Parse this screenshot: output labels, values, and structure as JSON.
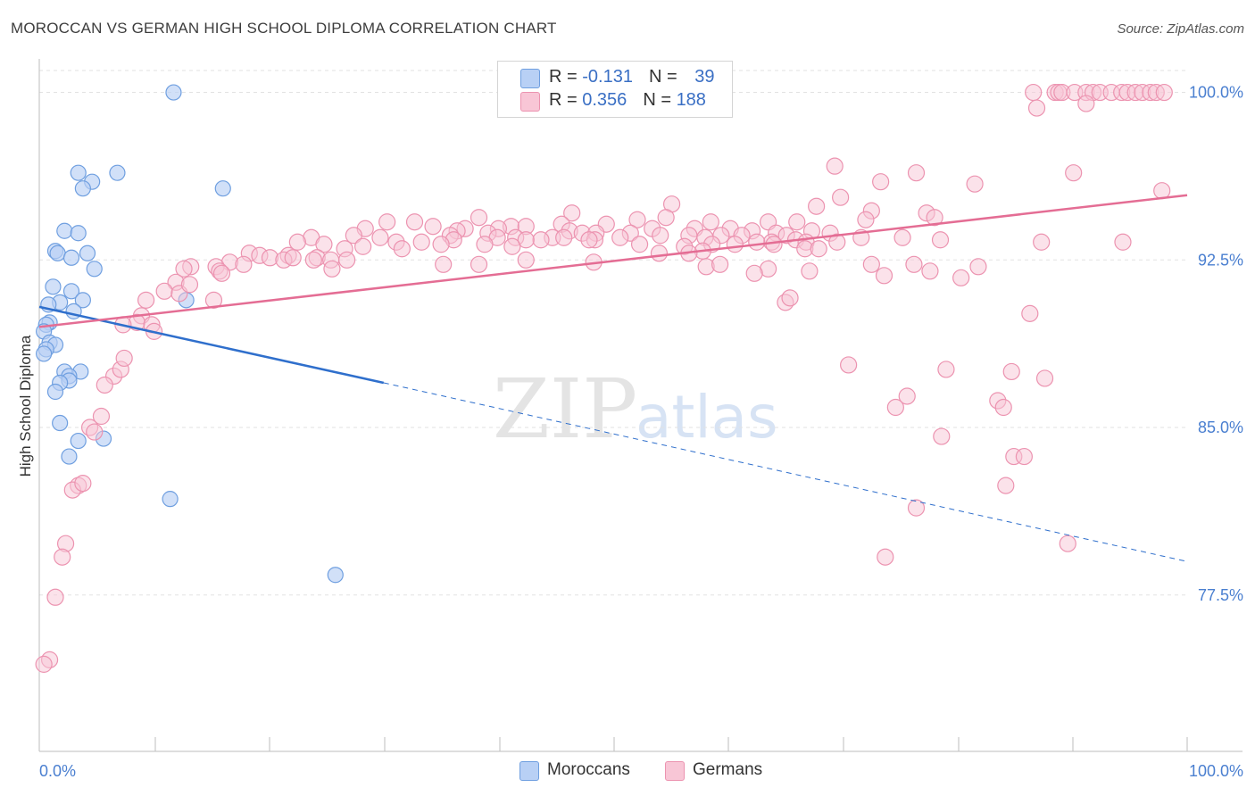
{
  "header": {
    "title": "MOROCCAN VS GERMAN HIGH SCHOOL DIPLOMA CORRELATION CHART",
    "source": "Source: ZipAtlas.com"
  },
  "legend": {
    "rows": [
      {
        "r_label": "R = ",
        "r_value": "-0.131",
        "n_label": "N = ",
        "n_value": "39"
      },
      {
        "r_label": "R = ",
        "r_value": "0.356",
        "n_label": "N = ",
        "n_value": "188"
      }
    ]
  },
  "watermark": {
    "part1": "ZIP",
    "part2": "atlas"
  },
  "colors": {
    "moroccans_fill": "#b8d0f5",
    "moroccans_stroke": "#6f9fe0",
    "moroccans_line": "#2f6fcc",
    "germans_fill": "#f8c6d6",
    "germans_stroke": "#ec93b0",
    "germans_line": "#e46d94",
    "tick_label": "#4a7fd0",
    "grid": "#e2e2e2"
  },
  "chart_data": {
    "type": "scatter",
    "title": "MOROCCAN VS GERMAN HIGH SCHOOL DIPLOMA CORRELATION CHART",
    "xlabel": "",
    "ylabel": "High School Diploma",
    "xlim": [
      0,
      100
    ],
    "ylim": [
      70.5,
      101.5
    ],
    "x_tick_labels": [
      "0.0%",
      "100.0%"
    ],
    "y_ticks": [
      77.5,
      85.0,
      92.5,
      100.0
    ],
    "y_tick_labels": [
      "77.5%",
      "85.0%",
      "92.5%",
      "100.0%"
    ],
    "grid": true,
    "legend_position": "top-center",
    "series": [
      {
        "name": "Moroccans",
        "r": -0.131,
        "n": 39,
        "trend_solid": [
          [
            0,
            90.4
          ],
          [
            30,
            87.0
          ]
        ],
        "trend_dashed": [
          [
            30,
            87.0
          ],
          [
            100,
            79.0
          ]
        ],
        "points": [
          [
            11.7,
            100.0
          ],
          [
            3.4,
            96.4
          ],
          [
            6.8,
            96.4
          ],
          [
            4.6,
            96.0
          ],
          [
            3.8,
            95.7
          ],
          [
            16.0,
            95.7
          ],
          [
            2.2,
            93.8
          ],
          [
            3.4,
            93.7
          ],
          [
            1.4,
            92.9
          ],
          [
            1.6,
            92.8
          ],
          [
            4.2,
            92.8
          ],
          [
            2.8,
            92.6
          ],
          [
            4.8,
            92.1
          ],
          [
            1.2,
            91.3
          ],
          [
            2.8,
            91.1
          ],
          [
            3.8,
            90.7
          ],
          [
            1.8,
            90.6
          ],
          [
            12.8,
            90.7
          ],
          [
            0.8,
            90.5
          ],
          [
            3.0,
            90.2
          ],
          [
            0.9,
            89.7
          ],
          [
            0.6,
            89.6
          ],
          [
            0.4,
            89.3
          ],
          [
            0.9,
            88.8
          ],
          [
            1.4,
            88.7
          ],
          [
            0.6,
            88.5
          ],
          [
            0.4,
            88.3
          ],
          [
            2.2,
            87.5
          ],
          [
            3.6,
            87.5
          ],
          [
            2.6,
            87.3
          ],
          [
            2.6,
            87.1
          ],
          [
            1.8,
            87.0
          ],
          [
            1.4,
            86.6
          ],
          [
            1.8,
            85.2
          ],
          [
            3.4,
            84.4
          ],
          [
            5.6,
            84.5
          ],
          [
            2.6,
            83.7
          ],
          [
            11.4,
            81.8
          ],
          [
            25.8,
            78.4
          ]
        ]
      },
      {
        "name": "Germans",
        "r": 0.356,
        "n": 188,
        "trend": [
          [
            0,
            89.5
          ],
          [
            100,
            95.4
          ]
        ],
        "points": [
          [
            86.6,
            100.0
          ],
          [
            88.5,
            100.0
          ],
          [
            88.8,
            100.0
          ],
          [
            89.1,
            100.0
          ],
          [
            90.2,
            100.0
          ],
          [
            91.2,
            100.0
          ],
          [
            91.8,
            100.0
          ],
          [
            92.4,
            100.0
          ],
          [
            93.4,
            100.0
          ],
          [
            94.3,
            100.0
          ],
          [
            94.8,
            100.0
          ],
          [
            95.5,
            100.0
          ],
          [
            96.1,
            100.0
          ],
          [
            96.8,
            100.0
          ],
          [
            97.3,
            100.0
          ],
          [
            98.0,
            100.0
          ],
          [
            86.9,
            99.3
          ],
          [
            91.2,
            99.5
          ],
          [
            69.3,
            96.7
          ],
          [
            76.4,
            96.4
          ],
          [
            90.1,
            96.4
          ],
          [
            73.3,
            96.0
          ],
          [
            81.5,
            95.9
          ],
          [
            97.8,
            95.6
          ],
          [
            69.8,
            95.3
          ],
          [
            67.7,
            94.9
          ],
          [
            72.5,
            94.7
          ],
          [
            55.1,
            95.0
          ],
          [
            46.4,
            94.6
          ],
          [
            77.3,
            94.6
          ],
          [
            54.6,
            94.4
          ],
          [
            38.3,
            94.4
          ],
          [
            52.1,
            94.3
          ],
          [
            58.5,
            94.2
          ],
          [
            63.5,
            94.2
          ],
          [
            66.0,
            94.2
          ],
          [
            72.0,
            94.3
          ],
          [
            45.5,
            94.1
          ],
          [
            49.4,
            94.1
          ],
          [
            41.1,
            94.0
          ],
          [
            78.0,
            94.4
          ],
          [
            42.4,
            94.0
          ],
          [
            53.4,
            93.9
          ],
          [
            57.1,
            93.9
          ],
          [
            60.2,
            93.9
          ],
          [
            62.1,
            93.8
          ],
          [
            37.1,
            93.9
          ],
          [
            46.2,
            93.8
          ],
          [
            30.3,
            94.2
          ],
          [
            32.7,
            94.2
          ],
          [
            34.3,
            94.0
          ],
          [
            40.0,
            93.9
          ],
          [
            39.1,
            93.7
          ],
          [
            36.4,
            93.8
          ],
          [
            35.8,
            93.6
          ],
          [
            28.4,
            93.9
          ],
          [
            47.3,
            93.7
          ],
          [
            48.5,
            93.7
          ],
          [
            51.5,
            93.7
          ],
          [
            54.1,
            93.6
          ],
          [
            56.6,
            93.6
          ],
          [
            59.4,
            93.6
          ],
          [
            61.2,
            93.6
          ],
          [
            64.2,
            93.7
          ],
          [
            65.1,
            93.6
          ],
          [
            67.3,
            93.8
          ],
          [
            68.9,
            93.7
          ],
          [
            71.6,
            93.5
          ],
          [
            44.7,
            93.5
          ],
          [
            43.7,
            93.4
          ],
          [
            41.5,
            93.5
          ],
          [
            39.9,
            93.5
          ],
          [
            31.1,
            93.3
          ],
          [
            29.7,
            93.5
          ],
          [
            23.7,
            93.5
          ],
          [
            27.4,
            93.6
          ],
          [
            33.3,
            93.3
          ],
          [
            36.1,
            93.4
          ],
          [
            48.4,
            93.4
          ],
          [
            42.4,
            93.4
          ],
          [
            47.9,
            93.4
          ],
          [
            45.7,
            93.5
          ],
          [
            50.6,
            93.5
          ],
          [
            58.0,
            93.5
          ],
          [
            63.8,
            93.3
          ],
          [
            65.9,
            93.4
          ],
          [
            66.8,
            93.3
          ],
          [
            69.5,
            93.3
          ],
          [
            75.2,
            93.5
          ],
          [
            78.5,
            93.4
          ],
          [
            87.3,
            93.3
          ],
          [
            94.4,
            93.3
          ],
          [
            58.6,
            93.2
          ],
          [
            60.6,
            93.2
          ],
          [
            62.5,
            93.3
          ],
          [
            64.0,
            93.2
          ],
          [
            22.5,
            93.3
          ],
          [
            24.8,
            93.2
          ],
          [
            28.2,
            93.1
          ],
          [
            31.6,
            93.0
          ],
          [
            35.0,
            93.2
          ],
          [
            38.8,
            93.2
          ],
          [
            41.2,
            93.1
          ],
          [
            52.3,
            93.2
          ],
          [
            56.2,
            93.1
          ],
          [
            57.8,
            92.9
          ],
          [
            66.7,
            93.0
          ],
          [
            67.9,
            93.0
          ],
          [
            54.0,
            92.8
          ],
          [
            56.6,
            92.8
          ],
          [
            26.6,
            93.0
          ],
          [
            18.3,
            92.8
          ],
          [
            19.2,
            92.7
          ],
          [
            20.1,
            92.6
          ],
          [
            21.7,
            92.7
          ],
          [
            21.3,
            92.5
          ],
          [
            24.2,
            92.6
          ],
          [
            22.1,
            92.6
          ],
          [
            23.9,
            92.5
          ],
          [
            25.4,
            92.5
          ],
          [
            26.8,
            92.5
          ],
          [
            16.6,
            92.4
          ],
          [
            15.4,
            92.2
          ],
          [
            17.8,
            92.3
          ],
          [
            13.2,
            92.2
          ],
          [
            12.6,
            92.1
          ],
          [
            15.7,
            92.0
          ],
          [
            25.5,
            92.1
          ],
          [
            35.2,
            92.3
          ],
          [
            38.3,
            92.3
          ],
          [
            42.4,
            92.5
          ],
          [
            48.3,
            92.4
          ],
          [
            58.1,
            92.2
          ],
          [
            63.5,
            92.1
          ],
          [
            67.1,
            92.0
          ],
          [
            72.5,
            92.3
          ],
          [
            76.2,
            92.3
          ],
          [
            11.9,
            91.5
          ],
          [
            15.9,
            91.9
          ],
          [
            59.3,
            92.3
          ],
          [
            62.3,
            91.9
          ],
          [
            73.6,
            91.8
          ],
          [
            77.6,
            92.0
          ],
          [
            80.3,
            91.7
          ],
          [
            81.8,
            92.2
          ],
          [
            10.9,
            91.1
          ],
          [
            12.2,
            91.0
          ],
          [
            9.3,
            90.7
          ],
          [
            13.1,
            91.4
          ],
          [
            65.0,
            90.6
          ],
          [
            65.4,
            90.8
          ],
          [
            15.2,
            90.7
          ],
          [
            86.3,
            90.1
          ],
          [
            8.9,
            90.0
          ],
          [
            8.5,
            89.7
          ],
          [
            9.8,
            89.6
          ],
          [
            7.3,
            89.6
          ],
          [
            10.0,
            89.3
          ],
          [
            70.5,
            87.8
          ],
          [
            79.0,
            87.6
          ],
          [
            84.7,
            87.5
          ],
          [
            87.6,
            87.2
          ],
          [
            6.5,
            87.3
          ],
          [
            7.1,
            87.6
          ],
          [
            7.4,
            88.1
          ],
          [
            5.7,
            86.9
          ],
          [
            83.5,
            86.2
          ],
          [
            5.4,
            85.5
          ],
          [
            84.0,
            85.9
          ],
          [
            74.6,
            85.9
          ],
          [
            4.4,
            85.0
          ],
          [
            4.8,
            84.8
          ],
          [
            78.6,
            84.6
          ],
          [
            84.9,
            83.7
          ],
          [
            3.4,
            82.4
          ],
          [
            2.9,
            82.2
          ],
          [
            3.8,
            82.5
          ],
          [
            85.8,
            83.7
          ],
          [
            84.2,
            82.4
          ],
          [
            2.3,
            79.8
          ],
          [
            2.0,
            79.2
          ],
          [
            76.4,
            81.4
          ],
          [
            73.7,
            79.2
          ],
          [
            89.6,
            79.8
          ],
          [
            1.4,
            77.4
          ],
          [
            0.9,
            74.6
          ],
          [
            0.4,
            74.4
          ],
          [
            75.6,
            86.4
          ]
        ]
      }
    ]
  }
}
